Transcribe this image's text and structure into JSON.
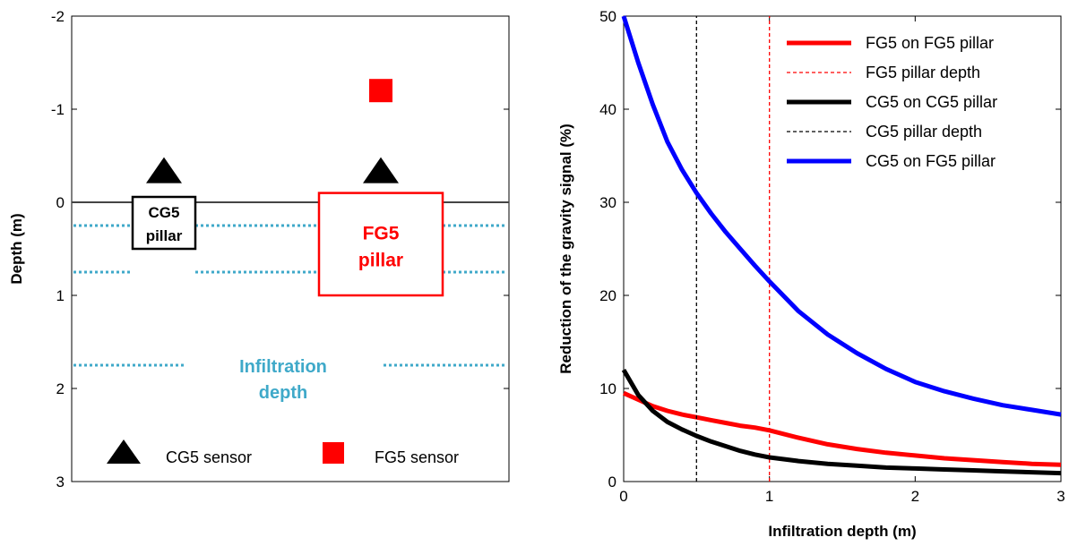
{
  "chart_data": [
    {
      "type": "diagram",
      "ylabel": "Depth (m)",
      "ylim": [
        -2,
        3
      ],
      "yticks": [
        "-2",
        "-1",
        "0",
        "1",
        "2",
        "3"
      ],
      "y_inverted": true,
      "ground_level": 0,
      "infiltration_lines": [
        0.25,
        0.75,
        1.75
      ],
      "cg5_pillar": {
        "line1": "CG5",
        "line2": "pillar",
        "depth_top": 0,
        "depth_bottom": 0.5,
        "color": "#000000"
      },
      "fg5_pillar": {
        "line1": "FG5",
        "line2": "pillar",
        "depth_top": -0.1,
        "depth_bottom": 1.0,
        "color": "#ff0000"
      },
      "sensors": [
        {
          "type": "CG5",
          "depth": -0.33,
          "over": "cg5"
        },
        {
          "type": "CG5",
          "depth": -0.33,
          "over": "fg5"
        },
        {
          "type": "FG5",
          "depth": -1.2,
          "over": "fg5"
        }
      ],
      "infiltration_label": {
        "line1": "Infiltration",
        "line2": "depth",
        "color": "#3fa9c9"
      },
      "legend": {
        "cg5_sensor": "CG5 sensor",
        "fg5_sensor": "FG5 sensor",
        "placement": "bottom"
      }
    },
    {
      "type": "line",
      "xlabel": "Infiltration depth (m)",
      "ylabel": "Reduction of the gravity signal (%)",
      "xlim": [
        0,
        3
      ],
      "ylim": [
        0,
        50
      ],
      "xticks": [
        "0",
        "1",
        "2",
        "3"
      ],
      "yticks": [
        "0",
        "10",
        "20",
        "30",
        "40",
        "50"
      ],
      "legend_placement": "top-right",
      "series": [
        {
          "name": "FG5 on FG5 pillar",
          "color": "#ff0000",
          "style": "solid",
          "x": [
            0,
            0.1,
            0.2,
            0.3,
            0.4,
            0.5,
            0.6,
            0.7,
            0.8,
            0.9,
            1.0,
            1.2,
            1.4,
            1.6,
            1.8,
            2.0,
            2.2,
            2.4,
            2.6,
            2.8,
            3.0
          ],
          "y": [
            9.5,
            8.8,
            8.1,
            7.6,
            7.2,
            6.9,
            6.6,
            6.3,
            6.0,
            5.8,
            5.5,
            4.7,
            4.0,
            3.5,
            3.1,
            2.8,
            2.5,
            2.3,
            2.1,
            1.9,
            1.8
          ]
        },
        {
          "name": "FG5 pillar depth",
          "color": "#ff0000",
          "style": "dashed",
          "x": [
            1,
            1
          ],
          "y": [
            0,
            50
          ]
        },
        {
          "name": "CG5 on CG5 pillar",
          "color": "#000000",
          "style": "solid",
          "x": [
            0,
            0.1,
            0.2,
            0.3,
            0.4,
            0.5,
            0.6,
            0.7,
            0.8,
            0.9,
            1.0,
            1.2,
            1.4,
            1.6,
            1.8,
            2.0,
            2.2,
            2.4,
            2.6,
            2.8,
            3.0
          ],
          "y": [
            12,
            9.3,
            7.6,
            6.4,
            5.6,
            4.9,
            4.3,
            3.8,
            3.3,
            2.9,
            2.6,
            2.2,
            1.9,
            1.7,
            1.5,
            1.4,
            1.3,
            1.2,
            1.1,
            1.0,
            0.9
          ]
        },
        {
          "name": "CG5 pillar depth",
          "color": "#000000",
          "style": "dashed",
          "x": [
            0.5,
            0.5
          ],
          "y": [
            0,
            50
          ]
        },
        {
          "name": "CG5 on FG5 pillar",
          "color": "#0000ff",
          "style": "solid",
          "x": [
            0,
            0.1,
            0.2,
            0.3,
            0.4,
            0.5,
            0.6,
            0.7,
            0.8,
            0.9,
            1.0,
            1.2,
            1.4,
            1.6,
            1.8,
            2.0,
            2.2,
            2.4,
            2.6,
            2.8,
            3.0
          ],
          "y": [
            50,
            45,
            40.5,
            36.5,
            33.5,
            31,
            28.8,
            26.8,
            25,
            23.2,
            21.5,
            18.3,
            15.8,
            13.8,
            12.1,
            10.7,
            9.7,
            8.9,
            8.2,
            7.7,
            7.2
          ]
        }
      ]
    }
  ]
}
